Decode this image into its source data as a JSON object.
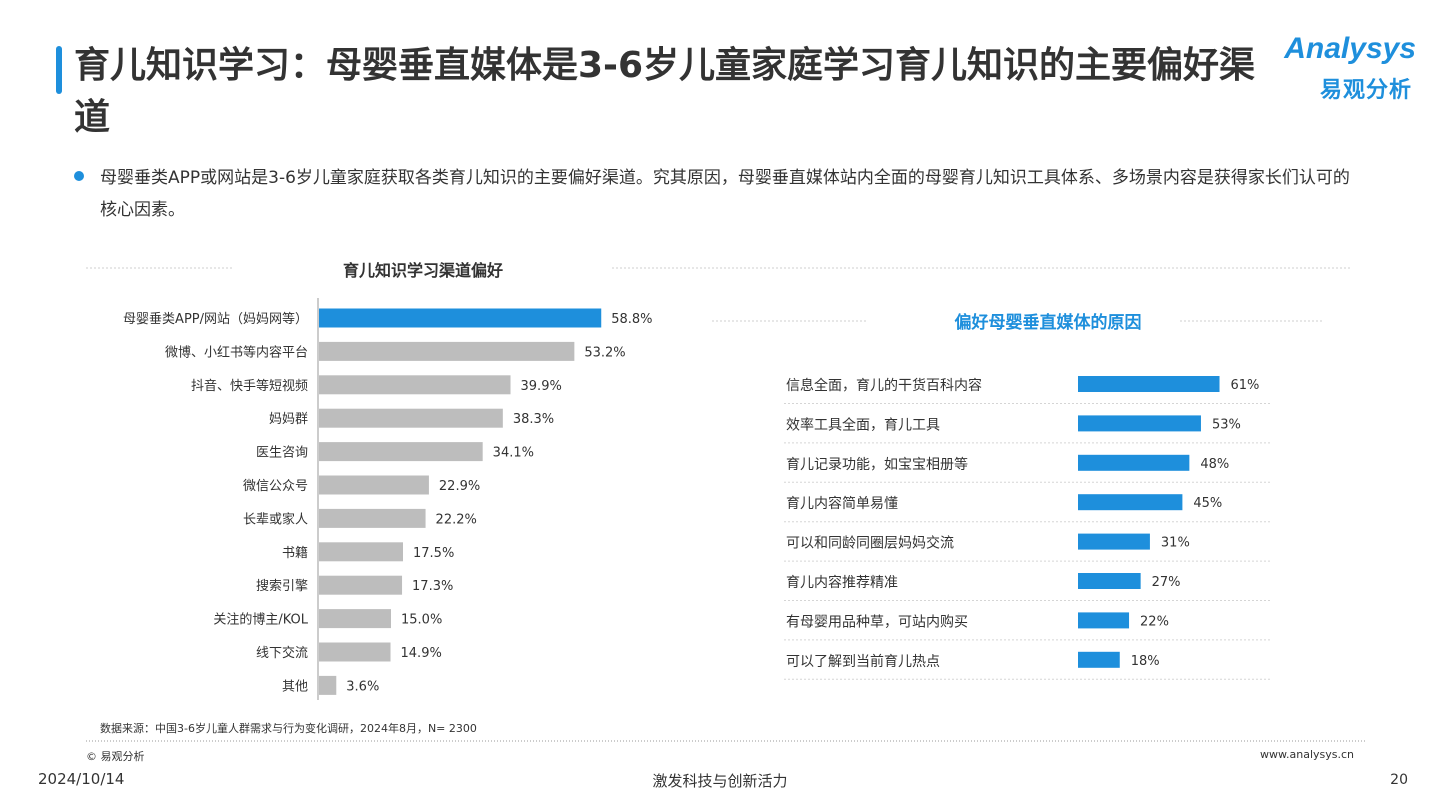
{
  "header": {
    "title": "育儿知识学习：母婴垂直媒体是3-6岁儿童家庭学习育儿知识的主要偏好渠道",
    "logo_en": "Analysys",
    "logo_cn": "易观分析"
  },
  "summary": "母婴垂类APP或网站是3-6岁儿童家庭获取各类育儿知识的主要偏好渠道。究其原因，母婴垂直媒体站内全面的母婴育儿知识工具体系、多场景内容是获得家长们认可的核心因素。",
  "colors": {
    "accent": "#1e8fdc",
    "gray_bar": "#bdbdbd"
  },
  "chart_data": [
    {
      "type": "bar",
      "orientation": "horizontal",
      "title": "育儿知识学习渠道偏好",
      "categories": [
        "母婴垂类APP/网站（妈妈网等）",
        "微博、小红书等内容平台",
        "抖音、快手等短视频",
        "妈妈群",
        "医生咨询",
        "微信公众号",
        "长辈或家人",
        "书籍",
        "搜索引擎",
        "关注的博主/KOL",
        "线下交流",
        "其他"
      ],
      "values": [
        58.8,
        53.2,
        39.9,
        38.3,
        34.1,
        22.9,
        22.2,
        17.5,
        17.3,
        15.0,
        14.9,
        3.6
      ],
      "labels": [
        "58.8%",
        "53.2%",
        "39.9%",
        "38.3%",
        "34.1%",
        "22.9%",
        "22.2%",
        "17.5%",
        "17.3%",
        "15.0%",
        "14.9%",
        "3.6%"
      ],
      "unit": "%",
      "highlight_index": 0
    },
    {
      "type": "bar",
      "orientation": "horizontal",
      "title": "偏好母婴垂直媒体的原因",
      "categories": [
        "信息全面，育儿的干货百科内容",
        "效率工具全面，育儿工具",
        "育儿记录功能，如宝宝相册等",
        "育儿内容简单易懂",
        "可以和同龄同圈层妈妈交流",
        "育儿内容推荐精准",
        "有母婴用品种草，可站内购买",
        "可以了解到当前育儿热点"
      ],
      "values": [
        61,
        53,
        48,
        45,
        31,
        27,
        22,
        18
      ],
      "labels": [
        "61%",
        "53%",
        "48%",
        "45%",
        "31%",
        "27%",
        "22%",
        "18%"
      ],
      "unit": "%"
    }
  ],
  "footer": {
    "source": "数据来源：中国3-6岁儿童人群需求与行为变化调研，2024年8月，N= 2300",
    "copyright": "© 易观分析",
    "url": "www.analysys.cn",
    "date": "2024/10/14",
    "slogan": "激发科技与创新活力",
    "page": "20"
  }
}
